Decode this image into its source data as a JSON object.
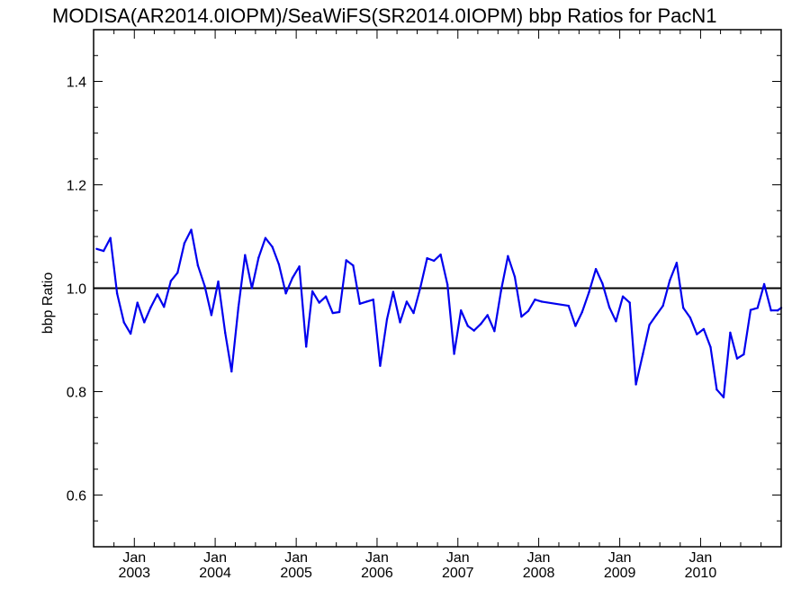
{
  "chart_data": {
    "type": "line",
    "title": "MODISA(AR2014.0IOPM)/SeaWiFS(SR2014.0IOPM)  bbp Ratios for PacN1",
    "xlabel": "",
    "ylabel": "bbp Ratio",
    "ylim": [
      0.5,
      1.5
    ],
    "xlim": [
      "2002-07-01",
      "2010-12-31"
    ],
    "grid": false,
    "y_ticks": [
      "0.6",
      "0.8",
      "1.0",
      "1.2",
      "1.4"
    ],
    "x_ticks": [
      {
        "month": "Jan",
        "year": "2003"
      },
      {
        "month": "Jan",
        "year": "2004"
      },
      {
        "month": "Jan",
        "year": "2005"
      },
      {
        "month": "Jan",
        "year": "2006"
      },
      {
        "month": "Jan",
        "year": "2007"
      },
      {
        "month": "Jan",
        "year": "2008"
      },
      {
        "month": "Jan",
        "year": "2009"
      },
      {
        "month": "Jan",
        "year": "2010"
      }
    ],
    "reference_line": {
      "y": 1.0,
      "color": "#000000"
    },
    "series": [
      {
        "color": "#0000ee",
        "x": [
          "2002-07-15",
          "2002-08-15",
          "2002-09-15",
          "2002-10-15",
          "2002-11-15",
          "2002-12-15",
          "2003-01-15",
          "2003-02-15",
          "2003-03-15",
          "2003-04-15",
          "2003-05-15",
          "2003-06-15",
          "2003-07-15",
          "2003-08-15",
          "2003-09-15",
          "2003-10-15",
          "2003-11-15",
          "2003-12-15",
          "2004-01-15",
          "2004-02-15",
          "2004-03-15",
          "2004-04-15",
          "2004-05-15",
          "2004-06-15",
          "2004-07-15",
          "2004-08-15",
          "2004-09-15",
          "2004-10-15",
          "2004-11-15",
          "2004-12-15",
          "2005-01-15",
          "2005-02-15",
          "2005-03-15",
          "2005-04-15",
          "2005-05-15",
          "2005-06-15",
          "2005-07-15",
          "2005-08-15",
          "2005-09-15",
          "2005-10-15",
          "2005-11-15",
          "2005-12-15",
          "2006-01-15",
          "2006-02-15",
          "2006-03-15",
          "2006-04-15",
          "2006-05-15",
          "2006-06-15",
          "2006-07-15",
          "2006-08-15",
          "2006-09-15",
          "2006-10-15",
          "2006-11-15",
          "2006-12-15",
          "2007-01-15",
          "2007-02-15",
          "2007-03-15",
          "2007-04-15",
          "2007-05-15",
          "2007-06-15",
          "2007-07-15",
          "2007-08-15",
          "2007-09-15",
          "2007-10-15",
          "2007-11-15",
          "2007-12-15",
          "2008-01-15",
          "2008-05-15",
          "2008-06-15",
          "2008-07-15",
          "2008-08-15",
          "2008-09-15",
          "2008-10-15",
          "2008-11-15",
          "2008-12-15",
          "2009-01-15",
          "2009-02-15",
          "2009-03-15",
          "2009-04-15",
          "2009-05-15",
          "2009-06-15",
          "2009-07-15",
          "2009-08-15",
          "2009-09-15",
          "2009-10-15",
          "2009-11-15",
          "2009-12-15",
          "2010-01-15",
          "2010-02-15",
          "2010-03-15",
          "2010-04-15",
          "2010-05-15",
          "2010-06-15",
          "2010-07-15",
          "2010-08-15",
          "2010-09-15",
          "2010-10-15",
          "2010-11-15",
          "2010-12-15",
          "2010-12-31"
        ],
        "y": [
          1.076,
          1.072,
          1.097,
          0.99,
          0.934,
          0.912,
          0.972,
          0.934,
          0.962,
          0.988,
          0.964,
          1.014,
          1.03,
          1.087,
          1.113,
          1.044,
          1.004,
          0.948,
          1.013,
          0.914,
          0.839,
          0.963,
          1.064,
          1.0,
          1.059,
          1.097,
          1.08,
          1.046,
          0.99,
          1.02,
          1.042,
          0.887,
          0.994,
          0.972,
          0.984,
          0.952,
          0.954,
          1.054,
          1.044,
          0.97,
          0.974,
          0.978,
          0.85,
          0.94,
          0.993,
          0.934,
          0.974,
          0.952,
          1.0,
          1.058,
          1.053,
          1.065,
          1.007,
          0.873,
          0.957,
          0.927,
          0.918,
          0.931,
          0.948,
          0.917,
          0.995,
          1.062,
          1.022,
          0.945,
          0.956,
          0.978,
          0.974,
          0.966,
          0.927,
          0.954,
          0.992,
          1.037,
          1.009,
          0.963,
          0.936,
          0.984,
          0.972,
          0.814,
          0.872,
          0.929,
          0.948,
          0.966,
          1.015,
          1.049,
          0.962,
          0.943,
          0.911,
          0.921,
          0.886,
          0.804,
          0.789,
          0.914,
          0.864,
          0.872,
          0.958,
          0.962,
          1.008,
          0.957,
          0.957,
          0.962
        ]
      }
    ]
  }
}
